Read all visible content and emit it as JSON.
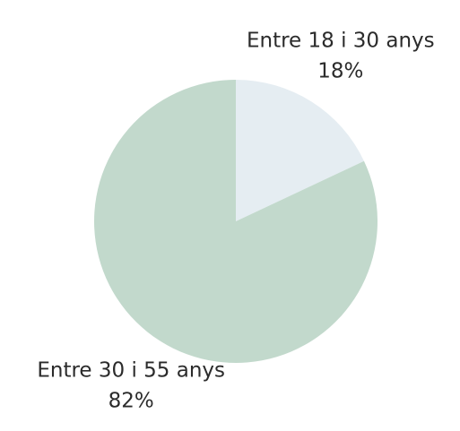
{
  "chart_data": {
    "type": "pie",
    "categories": [
      "Entre 18 i 30 anys",
      "Entre 30 i 55 anys"
    ],
    "values": [
      18,
      82
    ],
    "value_labels": [
      "18%",
      "82%"
    ],
    "colors": [
      "#e5edf2",
      "#c2d9cc"
    ]
  }
}
